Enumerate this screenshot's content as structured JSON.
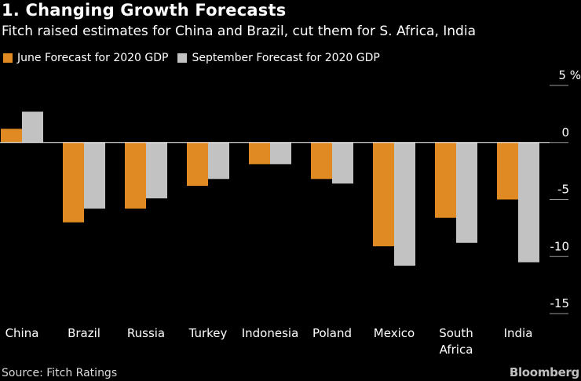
{
  "header": {
    "title": "1. Changing Growth Forecasts",
    "subtitle": "Fitch raised estimates for China and Brazil, cut them for S. Africa, India"
  },
  "footer": {
    "source": "Source: Fitch Ratings",
    "brand": "Bloomberg"
  },
  "colors": {
    "background": "#000000",
    "june": "#e08a24",
    "september": "#c2c2c2",
    "zero_line": "#ffffff",
    "tick_line": "#999999"
  },
  "chart_data": {
    "type": "bar",
    "title": "1. Changing Growth Forecasts",
    "subtitle": "Fitch raised estimates for China and Brazil, cut them for S. Africa, India",
    "categories": [
      "China",
      "Brazil",
      "Russia",
      "Turkey",
      "Indonesia",
      "Poland",
      "Mexico",
      "South Africa",
      "India"
    ],
    "series": [
      {
        "name": "June Forecast for 2020 GDP",
        "values": [
          1.2,
          -7.0,
          -5.8,
          -3.8,
          -1.9,
          -3.2,
          -9.1,
          -6.6,
          -5.0
        ]
      },
      {
        "name": "September Forecast for 2020 GDP",
        "values": [
          2.7,
          -5.8,
          -4.9,
          -3.2,
          -1.9,
          -3.6,
          -10.8,
          -8.8,
          -10.5
        ]
      }
    ],
    "y_ticks": [
      5,
      0,
      -5,
      -10,
      -15
    ],
    "y_tick_labels": [
      "5 %",
      "0",
      "-5",
      "-10",
      "-15"
    ],
    "ylim": [
      -15,
      5
    ],
    "xlabel": "",
    "ylabel": "",
    "legend_position": "top-left",
    "grid": false
  }
}
